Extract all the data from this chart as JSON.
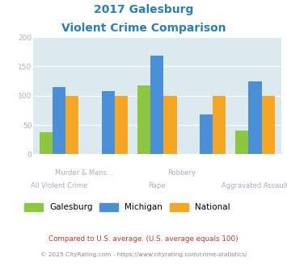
{
  "title_line1": "2017 Galesburg",
  "title_line2": "Violent Crime Comparison",
  "categories": [
    "All Violent Crime",
    "Murder & Mans...",
    "Rape",
    "Robbery",
    "Aggravated Assault"
  ],
  "galesburg": [
    38,
    0,
    118,
    0,
    40
  ],
  "michigan": [
    115,
    108,
    168,
    68,
    124
  ],
  "national": [
    100,
    100,
    100,
    100,
    100
  ],
  "color_galesburg": "#8dc63f",
  "color_michigan": "#4a90d9",
  "color_national": "#f5a623",
  "ylim": [
    0,
    200
  ],
  "yticks": [
    0,
    50,
    100,
    150,
    200
  ],
  "title_color": "#2980b9",
  "bg_color": "#dce9ee",
  "axis_label_color": "#b0a8c0",
  "footnote1": "Compared to U.S. average. (U.S. average equals 100)",
  "footnote2": "© 2025 CityRating.com - https://www.cityrating.com/crime-statistics/",
  "footnote1_color": "#c0392b",
  "footnote2_color": "#888888",
  "series_names": [
    "Galesburg",
    "Michigan",
    "National"
  ]
}
